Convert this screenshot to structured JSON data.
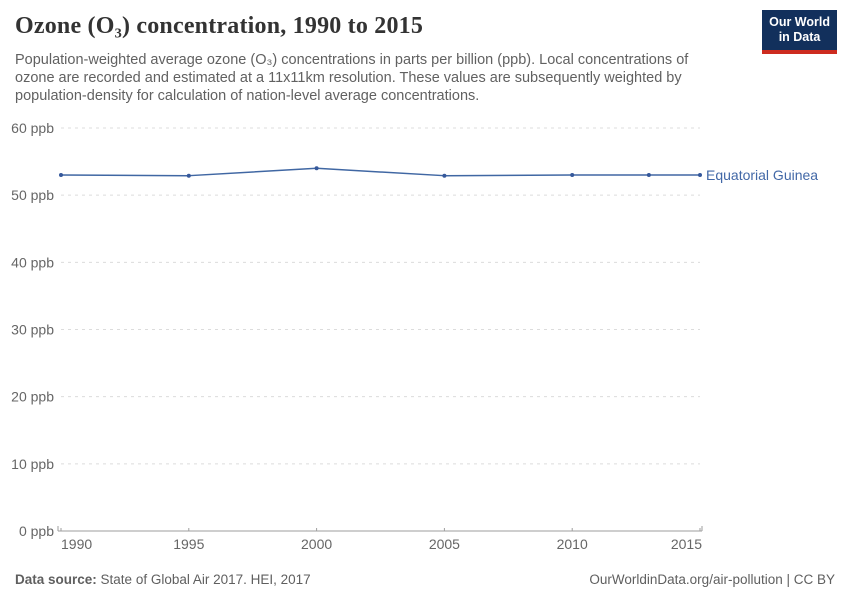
{
  "header": {
    "title": "Ozone (O₃) concentration, 1990 to 2015",
    "subtitle": "Population-weighted average ozone (O₃) concentrations in parts per billion (ppb). Local concentrations of ozone are recorded and estimated at a 11x11km resolution. These values are subsequently weighted by population-density for calculation of nation-level average concentrations.",
    "logo": {
      "line1": "Our World",
      "line2": "in Data"
    }
  },
  "chart_data": {
    "type": "line",
    "title": "Ozone (O₃) concentration, 1990 to 2015",
    "x_ticks": [
      1990,
      1995,
      2000,
      2005,
      2010,
      2015
    ],
    "y_ticks": [
      0,
      10,
      20,
      30,
      40,
      50,
      60
    ],
    "y_tick_suffix": " ppb",
    "xlim": [
      1990,
      2015
    ],
    "ylim": [
      0,
      60
    ],
    "grid": "horizontal-dashed",
    "legend": "inline-label-right",
    "series": [
      {
        "name": "Equatorial Guinea",
        "color": "#4067a3",
        "marker_color": "#35589b",
        "label_color": "#4268a7",
        "x": [
          1990,
          1995,
          2000,
          2005,
          2010,
          2013,
          2015
        ],
        "values": [
          53.0,
          52.9,
          54.0,
          52.9,
          53.0,
          53.0,
          53.0
        ]
      }
    ],
    "colors": {
      "gridline": "#dcdcdc",
      "axis": "#9e9e9e",
      "tick_label": "#666666"
    }
  },
  "footer": {
    "data_source_label": "Data source:",
    "data_source_value": "State of Global Air 2017. HEI, 2017",
    "credit": "OurWorldinData.org/air-pollution | CC BY"
  },
  "brand": {
    "navy": "#12305c",
    "red": "#cd2b1f"
  }
}
